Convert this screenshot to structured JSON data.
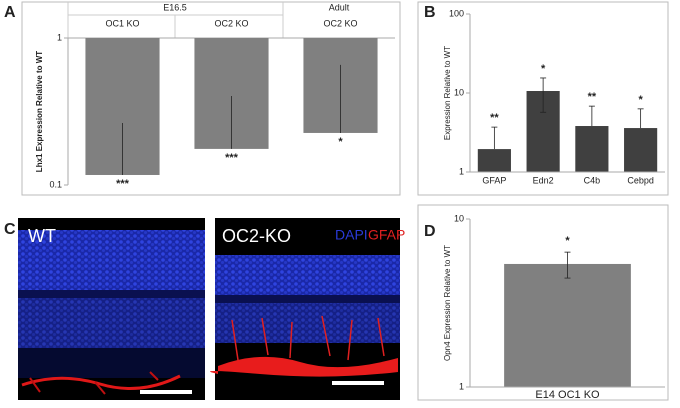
{
  "panel_labels": [
    "A",
    "B",
    "C",
    "D"
  ],
  "chart_data": [
    {
      "type": "bar",
      "group_labels": [
        "E16.5",
        "Adult"
      ],
      "categories": [
        "OC1 KO",
        "OC2 KO",
        "OC2 KO"
      ],
      "values": [
        0.117,
        0.176,
        0.226
      ],
      "errors": [
        0.147,
        0.227,
        0.43
      ],
      "annotations": [
        "***",
        "***",
        "*"
      ],
      "y_label": "Lhx1 Expression Relative to WT",
      "log_scale": true,
      "ylim": [
        0.1,
        1
      ],
      "yticks": [
        0.1,
        1
      ],
      "color": "#808080"
    },
    {
      "type": "bar",
      "categories": [
        "GFAP",
        "Edn2",
        "C4b",
        "Cebpd"
      ],
      "values": [
        1.95,
        10.6,
        3.82,
        3.6
      ],
      "errors": [
        1.75,
        4.9,
        3.0,
        2.7
      ],
      "annotations": [
        "**",
        "*",
        "**",
        "*"
      ],
      "y_label": "Expression Relative to WT",
      "log_scale": true,
      "ylim": [
        1,
        100
      ],
      "yticks": [
        1,
        10,
        100
      ],
      "color": "#404040"
    },
    {
      "type": "bar",
      "categories": [
        "E14 OC1 KO"
      ],
      "values": [
        5.4
      ],
      "errors": [
        0.95
      ],
      "annotations": [
        "*"
      ],
      "y_label": "Opn4 Expression Relative to WT",
      "log_scale": true,
      "ylim": [
        1,
        10
      ],
      "yticks": [
        1,
        10
      ],
      "color": "#808080"
    }
  ],
  "image_panel": {
    "labels": [
      "WT",
      "OC2-KO"
    ],
    "stain_labels": [
      {
        "text": "DAPI",
        "color": "#2a3ad8"
      },
      {
        "text": "GFAP",
        "color": "#e02020"
      }
    ]
  }
}
